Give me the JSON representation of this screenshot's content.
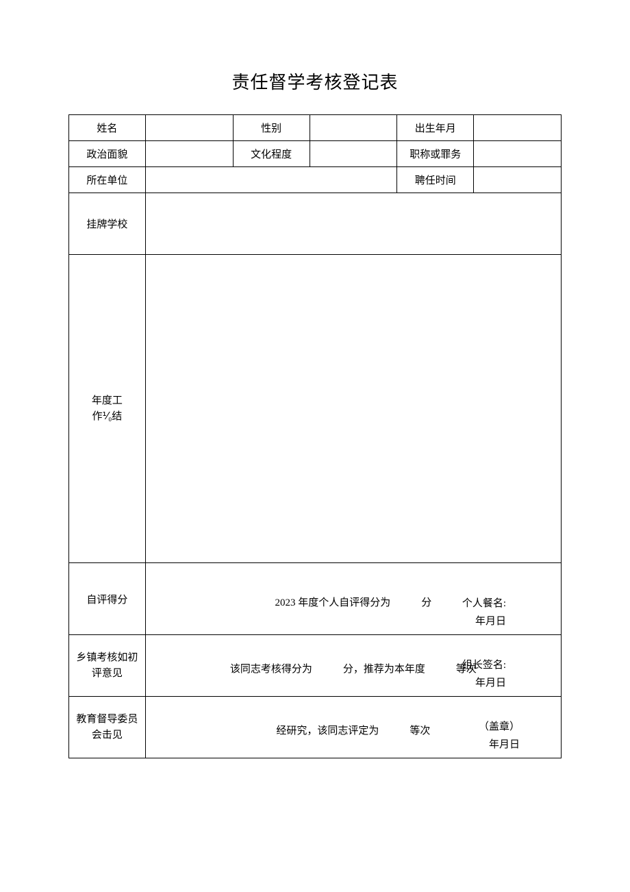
{
  "title": "责任督学考核登记表",
  "row1": {
    "name_label": "姓名",
    "name_value": "",
    "gender_label": "性别",
    "gender_value": "",
    "birth_label": "出生年月",
    "birth_value": ""
  },
  "row2": {
    "political_label": "政治面貌",
    "political_value": "",
    "education_label": "文化程度",
    "education_value": "",
    "position_label": "职称或罪务",
    "position_value": ""
  },
  "row3": {
    "unit_label": "所在单位",
    "unit_value": "",
    "appoint_label": "聘任时间",
    "appoint_value": ""
  },
  "row4": {
    "school_label": "挂牌学校",
    "school_value": ""
  },
  "row5": {
    "summary_label_line1": "年度工",
    "summary_label_line2": "作⅟₀结",
    "summary_value": ""
  },
  "row6": {
    "self_label": "自评得分",
    "main_text": "2023 年度个人自评得分为　　　分",
    "sig_line1": "个人餐名:",
    "sig_line2": "年月日"
  },
  "row7": {
    "town_label_line1": "乡镇考核如初",
    "town_label_line2": "评意见",
    "main_text": "该同志考核得分为　　　分，推荐为本年度　　　等次",
    "sig_line1": "组长签名:",
    "sig_line2": "年月日"
  },
  "row8": {
    "edu_label_line1": "教育督导委员",
    "edu_label_line2": "会击见",
    "main_text": "经研究，该同志评定为　　　等次",
    "sig_line1": "（盖章）",
    "sig_line2": "年月日"
  },
  "colors": {
    "border": "#000000",
    "text": "#000000",
    "background": "#ffffff"
  }
}
